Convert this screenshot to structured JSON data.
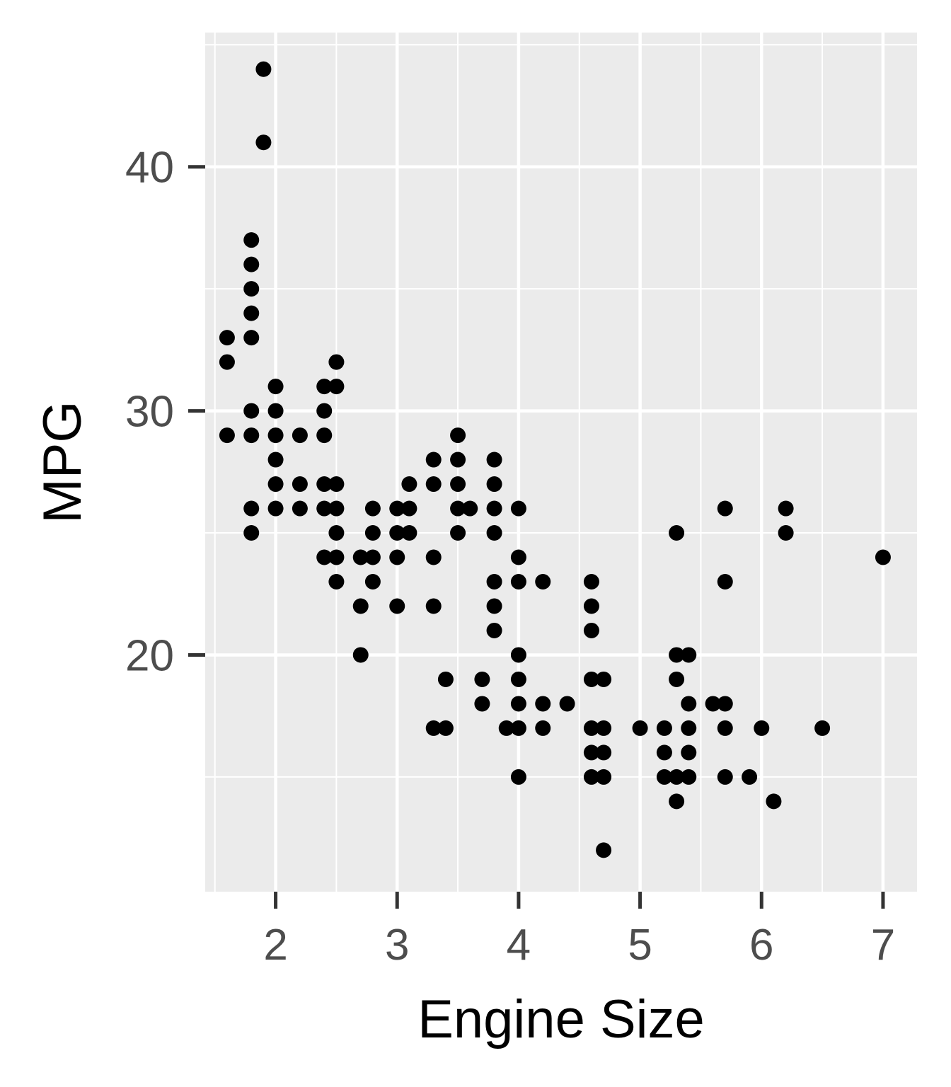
{
  "chart_data": {
    "type": "scatter",
    "title": "",
    "xlabel": "Engine Size",
    "ylabel": "MPG",
    "xlim": [
      1.42,
      7.28
    ],
    "ylim": [
      10.3,
      45.5
    ],
    "x_ticks": [
      2,
      3,
      4,
      5,
      6,
      7
    ],
    "x_tick_labels": [
      "2",
      "3",
      "4",
      "5",
      "6",
      "7"
    ],
    "y_ticks": [
      20,
      30,
      40
    ],
    "y_tick_labels": [
      "20",
      "30",
      "40"
    ],
    "grid": true,
    "legend": "none",
    "point_color": "#000000",
    "panel_color": "#ebebeb",
    "grid_color": "#ffffff",
    "points": [
      [
        1.9,
        44
      ],
      [
        1.9,
        41
      ],
      [
        1.8,
        37
      ],
      [
        1.8,
        36
      ],
      [
        1.8,
        35
      ],
      [
        1.8,
        34
      ],
      [
        1.8,
        33
      ],
      [
        1.8,
        30
      ],
      [
        1.8,
        29
      ],
      [
        1.8,
        26
      ],
      [
        1.8,
        25
      ],
      [
        1.6,
        33
      ],
      [
        1.6,
        32
      ],
      [
        1.6,
        29
      ],
      [
        2.0,
        31
      ],
      [
        2.0,
        30
      ],
      [
        2.0,
        29
      ],
      [
        2.0,
        28
      ],
      [
        2.0,
        27
      ],
      [
        2.0,
        26
      ],
      [
        2.2,
        29
      ],
      [
        2.2,
        27
      ],
      [
        2.2,
        26
      ],
      [
        2.4,
        31
      ],
      [
        2.4,
        30
      ],
      [
        2.4,
        29
      ],
      [
        2.4,
        27
      ],
      [
        2.4,
        26
      ],
      [
        2.4,
        24
      ],
      [
        2.5,
        32
      ],
      [
        2.5,
        31
      ],
      [
        2.5,
        27
      ],
      [
        2.5,
        26
      ],
      [
        2.5,
        25
      ],
      [
        2.5,
        24
      ],
      [
        2.5,
        23
      ],
      [
        2.7,
        24
      ],
      [
        2.7,
        22
      ],
      [
        2.7,
        20
      ],
      [
        2.8,
        26
      ],
      [
        2.8,
        25
      ],
      [
        2.8,
        24
      ],
      [
        2.8,
        23
      ],
      [
        3.0,
        26
      ],
      [
        3.0,
        25
      ],
      [
        3.0,
        24
      ],
      [
        3.0,
        22
      ],
      [
        3.1,
        27
      ],
      [
        3.1,
        26
      ],
      [
        3.1,
        25
      ],
      [
        3.3,
        28
      ],
      [
        3.3,
        27
      ],
      [
        3.3,
        24
      ],
      [
        3.3,
        22
      ],
      [
        3.3,
        17
      ],
      [
        3.4,
        19
      ],
      [
        3.4,
        17
      ],
      [
        3.5,
        29
      ],
      [
        3.5,
        28
      ],
      [
        3.5,
        27
      ],
      [
        3.5,
        26
      ],
      [
        3.5,
        25
      ],
      [
        3.6,
        26
      ],
      [
        3.7,
        19
      ],
      [
        3.7,
        18
      ],
      [
        3.8,
        28
      ],
      [
        3.8,
        27
      ],
      [
        3.8,
        26
      ],
      [
        3.8,
        25
      ],
      [
        3.8,
        23
      ],
      [
        3.8,
        22
      ],
      [
        3.8,
        21
      ],
      [
        3.9,
        17
      ],
      [
        4.0,
        26
      ],
      [
        4.0,
        24
      ],
      [
        4.0,
        23
      ],
      [
        4.0,
        20
      ],
      [
        4.0,
        19
      ],
      [
        4.0,
        18
      ],
      [
        4.0,
        17
      ],
      [
        4.0,
        15
      ],
      [
        4.2,
        23
      ],
      [
        4.2,
        18
      ],
      [
        4.2,
        17
      ],
      [
        4.4,
        18
      ],
      [
        4.6,
        23
      ],
      [
        4.6,
        22
      ],
      [
        4.6,
        21
      ],
      [
        4.6,
        19
      ],
      [
        4.6,
        17
      ],
      [
        4.6,
        16
      ],
      [
        4.6,
        15
      ],
      [
        4.7,
        19
      ],
      [
        4.7,
        17
      ],
      [
        4.7,
        16
      ],
      [
        4.7,
        15
      ],
      [
        4.7,
        12
      ],
      [
        5.0,
        17
      ],
      [
        5.2,
        17
      ],
      [
        5.2,
        16
      ],
      [
        5.2,
        15
      ],
      [
        5.3,
        25
      ],
      [
        5.3,
        20
      ],
      [
        5.3,
        19
      ],
      [
        5.3,
        15
      ],
      [
        5.3,
        14
      ],
      [
        5.4,
        20
      ],
      [
        5.4,
        18
      ],
      [
        5.4,
        17
      ],
      [
        5.4,
        16
      ],
      [
        5.4,
        15
      ],
      [
        5.6,
        18
      ],
      [
        5.7,
        26
      ],
      [
        5.7,
        23
      ],
      [
        5.7,
        18
      ],
      [
        5.7,
        17
      ],
      [
        5.7,
        15
      ],
      [
        5.9,
        15
      ],
      [
        6.0,
        17
      ],
      [
        6.1,
        14
      ],
      [
        6.2,
        26
      ],
      [
        6.2,
        25
      ],
      [
        6.5,
        17
      ],
      [
        7.0,
        24
      ]
    ]
  }
}
